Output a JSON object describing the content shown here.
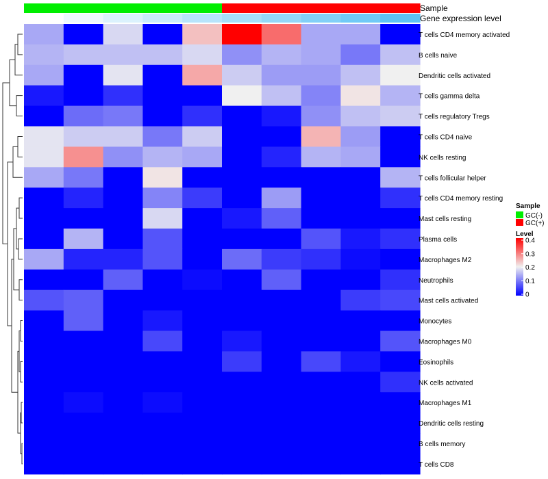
{
  "chart_data": {
    "type": "heatmap",
    "title": "",
    "columns": 10,
    "annotation_tracks": [
      {
        "name": "Sample",
        "kind": "sample"
      },
      {
        "name": "Gene expression level",
        "kind": "gradient",
        "colors": [
          "#ffffff",
          "#5ec3f5"
        ]
      }
    ],
    "sample_groups": [
      "GC(-)",
      "GC(-)",
      "GC(-)",
      "GC(-)",
      "GC(-)",
      "GC(+)",
      "GC(+)",
      "GC(+)",
      "GC(+)",
      "GC(+)"
    ],
    "rows": [
      "T cells CD4 memory activated",
      "B cells naive",
      "Dendritic cells activated",
      "T cells gamma delta",
      "T cells regulatory  Tregs",
      "T cells CD4 naive",
      "NK cells resting",
      "T cells follicular helper",
      "T cells CD4 memory resting",
      "Mast cells resting",
      "Plasma cells",
      "Macrophages M2",
      "Neutrophils",
      "Mast cells activated",
      "Monocytes",
      "Macrophages M0",
      "Eosinophils",
      "NK cells activated",
      "Macrophages M1",
      "Dendritic cells resting",
      "B cells memory",
      "T cells CD8"
    ],
    "values": [
      [
        0.14,
        0.0,
        0.18,
        0.0,
        0.24,
        0.4,
        0.31,
        0.14,
        0.14,
        0.0
      ],
      [
        0.15,
        0.16,
        0.16,
        0.16,
        0.18,
        0.12,
        0.15,
        0.14,
        0.1,
        0.16
      ],
      [
        0.14,
        0.0,
        0.19,
        0.0,
        0.26,
        0.17,
        0.13,
        0.13,
        0.16,
        0.2
      ],
      [
        0.02,
        0.0,
        0.04,
        0.0,
        0.0,
        0.2,
        0.16,
        0.11,
        0.21,
        0.15
      ],
      [
        0.0,
        0.09,
        0.1,
        0.0,
        0.04,
        0.0,
        0.02,
        0.12,
        0.16,
        0.17
      ],
      [
        0.19,
        0.17,
        0.17,
        0.1,
        0.17,
        0.0,
        0.0,
        0.25,
        0.13,
        0.0
      ],
      [
        0.19,
        0.28,
        0.12,
        0.15,
        0.14,
        0.0,
        0.03,
        0.15,
        0.14,
        0.0
      ],
      [
        0.14,
        0.1,
        0.0,
        0.21,
        0.0,
        0.0,
        0.0,
        0.0,
        0.0,
        0.15
      ],
      [
        0.0,
        0.03,
        0.0,
        0.11,
        0.05,
        0.0,
        0.13,
        0.0,
        0.0,
        0.04
      ],
      [
        0.0,
        0.0,
        0.0,
        0.18,
        0.0,
        0.02,
        0.08,
        0.0,
        0.0,
        0.0
      ],
      [
        0.0,
        0.15,
        0.0,
        0.07,
        0.0,
        0.0,
        0.0,
        0.07,
        0.02,
        0.04
      ],
      [
        0.14,
        0.03,
        0.03,
        0.07,
        0.0,
        0.09,
        0.05,
        0.04,
        0.01,
        0.0
      ],
      [
        0.0,
        0.0,
        0.08,
        0.0,
        0.01,
        0.0,
        0.08,
        0.0,
        0.0,
        0.04
      ],
      [
        0.07,
        0.08,
        0.0,
        0.0,
        0.0,
        0.0,
        0.0,
        0.0,
        0.05,
        0.06
      ],
      [
        0.0,
        0.08,
        0.0,
        0.02,
        0.0,
        0.0,
        0.0,
        0.0,
        0.0,
        0.0
      ],
      [
        0.0,
        0.0,
        0.0,
        0.06,
        0.0,
        0.02,
        0.0,
        0.0,
        0.0,
        0.07
      ],
      [
        0.0,
        0.0,
        0.0,
        0.0,
        0.0,
        0.05,
        0.0,
        0.06,
        0.02,
        0.0
      ],
      [
        0.0,
        0.0,
        0.0,
        0.0,
        0.0,
        0.0,
        0.0,
        0.0,
        0.0,
        0.04
      ],
      [
        0.0,
        0.01,
        0.0,
        0.01,
        0.0,
        0.0,
        0.0,
        0.0,
        0.0,
        0.0
      ],
      [
        0.0,
        0.0,
        0.0,
        0.0,
        0.0,
        0.0,
        0.0,
        0.0,
        0.0,
        0.0
      ],
      [
        0.0,
        0.0,
        0.0,
        0.0,
        0.0,
        0.0,
        0.0,
        0.0,
        0.0,
        0.0
      ],
      [
        0.0,
        0.0,
        0.0,
        0.0,
        0.0,
        0.0,
        0.0,
        0.0,
        0.0,
        0.0
      ]
    ],
    "color_scale": {
      "low": "#0000ff",
      "mid": "#f0f0f0",
      "high": "#ff0000",
      "domain": [
        0,
        0.2,
        0.4
      ]
    },
    "sample_legend": {
      "title": "Sample",
      "items": [
        {
          "label": "GC(-)",
          "color": "#00ee00"
        },
        {
          "label": "GC(+)",
          "color": "#ff0000"
        }
      ]
    },
    "level_legend": {
      "title": "Level",
      "ticks": [
        {
          "label": "0.4",
          "value": 0.4
        },
        {
          "label": "0.3",
          "value": 0.3
        },
        {
          "label": "0.2",
          "value": 0.2
        },
        {
          "label": "0.1",
          "value": 0.1
        },
        {
          "label": "0",
          "value": 0
        }
      ]
    },
    "dendrogram": {
      "side": "left"
    },
    "grid": false
  }
}
